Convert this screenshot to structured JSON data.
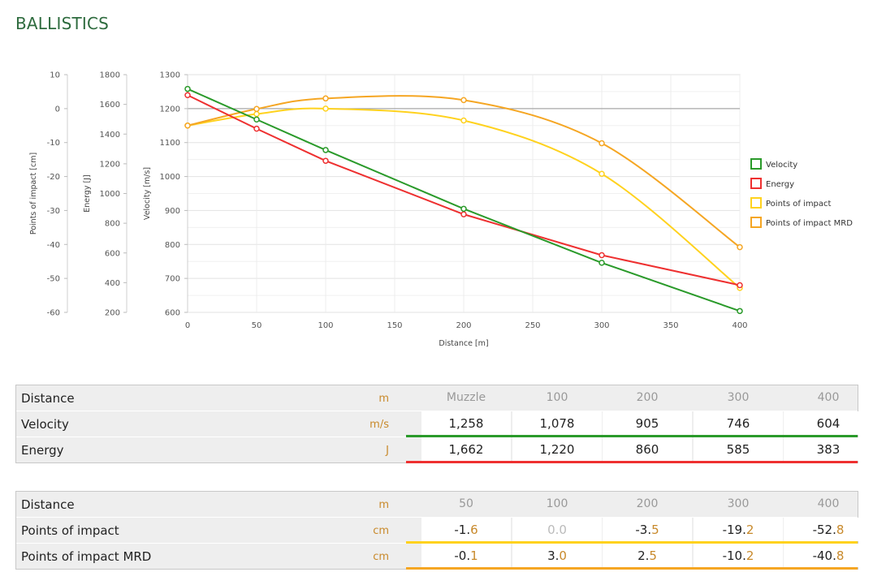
{
  "header": {
    "title": "BALLISTICS"
  },
  "colors": {
    "velocity": "#2a9a2a",
    "energy": "#ee3030",
    "points_of_impact": "#ffd21e",
    "points_of_impact_mrd": "#f5a623"
  },
  "chart_data": {
    "type": "line",
    "xlabel": "Distance [m]",
    "x_ticks": [
      0,
      50,
      100,
      150,
      200,
      250,
      300,
      350,
      400
    ],
    "xlim": [
      0,
      400
    ],
    "grid": true,
    "legend_position": "right",
    "axes": {
      "impact": {
        "label": "Points of impact [cm]",
        "ticks": [
          10,
          0,
          -10,
          -20,
          -30,
          -40,
          -50,
          -60
        ],
        "range": [
          -60,
          10
        ]
      },
      "energy": {
        "label": "Energy [J]",
        "ticks": [
          1800,
          1600,
          1400,
          1200,
          1000,
          800,
          600,
          400,
          200
        ],
        "range": [
          200,
          1800
        ]
      },
      "velocity": {
        "label": "Velocity [m/s]",
        "ticks": [
          1300,
          1200,
          1100,
          1000,
          900,
          800,
          700,
          600
        ],
        "range": [
          600,
          1300
        ]
      }
    },
    "series": [
      {
        "name": "Velocity",
        "axis": "velocity",
        "color": "#2a9a2a",
        "x": [
          0,
          50,
          100,
          200,
          300,
          400
        ],
        "y": [
          1258,
          1168,
          1078,
          905,
          746,
          604
        ]
      },
      {
        "name": "Energy",
        "axis": "energy",
        "color": "#ee3030",
        "x": [
          0,
          50,
          100,
          200,
          300,
          400
        ],
        "y": [
          1662,
          1436,
          1220,
          860,
          585,
          383
        ]
      },
      {
        "name": "Points of impact",
        "axis": "impact",
        "color": "#ffd21e",
        "x": [
          0,
          50,
          100,
          200,
          300,
          400
        ],
        "y": [
          -5,
          -1.6,
          0.0,
          -3.5,
          -19.2,
          -52.8
        ]
      },
      {
        "name": "Points of impact MRD",
        "axis": "impact",
        "color": "#f5a623",
        "x": [
          0,
          50,
          100,
          200,
          300,
          400
        ],
        "y": [
          -5,
          -0.1,
          3.0,
          2.5,
          -10.2,
          -40.8
        ]
      }
    ]
  },
  "table1": {
    "header": {
      "label": "Distance",
      "unit": "m",
      "columns": [
        "Muzzle",
        "100",
        "200",
        "300",
        "400"
      ]
    },
    "rows": [
      {
        "label": "Velocity",
        "unit": "m/s",
        "values": [
          "1,258",
          "1,078",
          "905",
          "746",
          "604"
        ],
        "color": "#2a9a2a"
      },
      {
        "label": "Energy",
        "unit": "J",
        "values": [
          "1,662",
          "1,220",
          "860",
          "585",
          "383"
        ],
        "color": "#ee3030"
      }
    ]
  },
  "table2": {
    "header": {
      "label": "Distance",
      "unit": "m",
      "columns": [
        "50",
        "100",
        "200",
        "300",
        "400"
      ]
    },
    "rows": [
      {
        "label": "Points of impact",
        "unit": "cm",
        "values": [
          "-1.6",
          "0.0",
          "-3.5",
          "-19.2",
          "-52.8"
        ],
        "color": "#ffd21e"
      },
      {
        "label": "Points of impact MRD",
        "unit": "cm",
        "values": [
          "-0.1",
          "3.0",
          "2.5",
          "-10.2",
          "-40.8"
        ],
        "color": "#f5a623"
      }
    ]
  }
}
